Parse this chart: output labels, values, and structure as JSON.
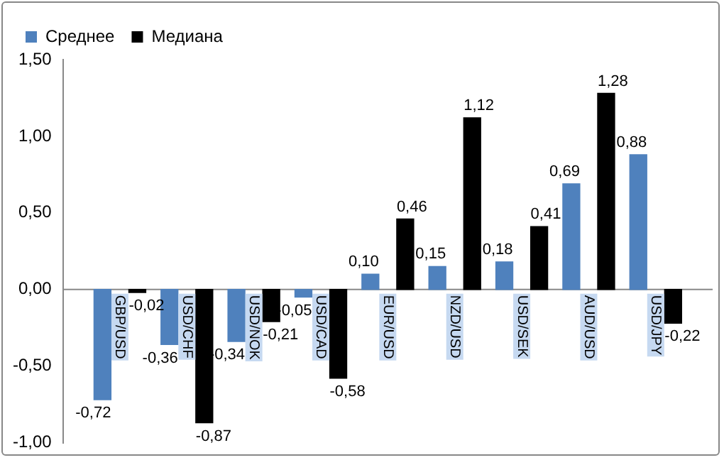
{
  "chart_data": {
    "type": "bar",
    "categories": [
      "GBP/USD",
      "USD/CHF",
      "USD/NOK",
      "USD/CAD",
      "EUR/USD",
      "NZD/USD",
      "USD/SEK",
      "AUD/USD",
      "USD/JPY"
    ],
    "series": [
      {
        "name": "Среднее",
        "color": "#4f81bd",
        "values": [
          -0.72,
          -0.36,
          -0.34,
          -0.05,
          0.1,
          0.15,
          0.18,
          0.69,
          0.88
        ],
        "value_labels": [
          "-0,72",
          "-0,36",
          "-0,34",
          "-0,05",
          "0,10",
          "0,15",
          "0,18",
          "0,69",
          "0,88"
        ]
      },
      {
        "name": "Медиана",
        "color": "#000000",
        "values": [
          -0.02,
          -0.87,
          -0.21,
          -0.58,
          0.46,
          1.12,
          0.41,
          1.28,
          -0.22
        ],
        "value_labels": [
          "-0,02",
          "-0,87",
          "-0,21",
          "-0,58",
          "0,46",
          "1,12",
          "0,41",
          "1,28",
          "-0,22"
        ]
      }
    ],
    "ylim": [
      -1,
      1.5
    ],
    "yticks": [
      {
        "value": -1,
        "label": "-1,00"
      },
      {
        "value": -0.5,
        "label": "-0,50"
      },
      {
        "value": 0,
        "label": "0,00"
      },
      {
        "value": 0.5,
        "label": "0,50"
      },
      {
        "value": 1,
        "label": "1,00"
      },
      {
        "value": 1.5,
        "label": "1,50"
      }
    ],
    "grid": false,
    "legend": "top left"
  }
}
